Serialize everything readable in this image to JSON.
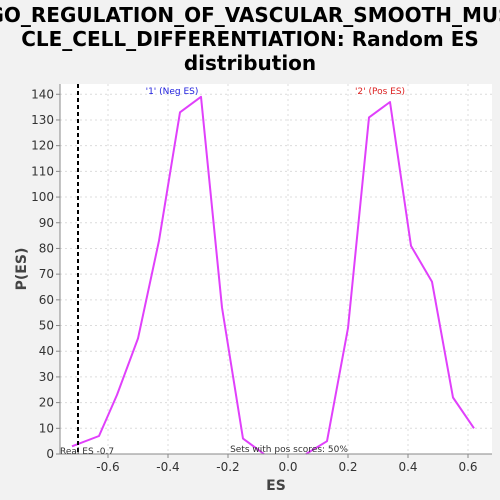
{
  "chart_data": {
    "type": "line",
    "title_lines": [
      "GO_REGULATION_OF_VASCULAR_SMOOTH_MUS",
      "CLE_CELL_DIFFERENTIATION: Random ES",
      "distribution"
    ],
    "xlabel": "ES",
    "ylabel": "P(ES)",
    "xlim": [
      -0.76,
      0.68
    ],
    "ylim": [
      0,
      144
    ],
    "xticks": [
      -0.6,
      -0.4,
      -0.2,
      0.0,
      0.2,
      0.4,
      0.6
    ],
    "xtick_labels": [
      "-0.6",
      "-0.4",
      "-0.2",
      "0.0",
      "0.2",
      "0.4",
      "0.6"
    ],
    "yticks": [
      0,
      10,
      20,
      30,
      40,
      50,
      60,
      70,
      80,
      90,
      100,
      110,
      120,
      130,
      140
    ],
    "ytick_labels": [
      "0",
      "10",
      "20",
      "30",
      "40",
      "50",
      "60",
      "70",
      "80",
      "90",
      "100",
      "110",
      "120",
      "130",
      "140"
    ],
    "grid": true,
    "series": [
      {
        "name": "'1' (Neg ES)",
        "color": "#e040fb",
        "x": [
          -0.72,
          -0.63,
          -0.57,
          -0.5,
          -0.43,
          -0.36,
          -0.29,
          -0.22,
          -0.15,
          -0.08
        ],
        "y": [
          3,
          7,
          23,
          45,
          83,
          133,
          139,
          57,
          6,
          0
        ]
      },
      {
        "name": "'2' (Pos ES)",
        "color": "#e040fb",
        "x": [
          0.06,
          0.13,
          0.2,
          0.27,
          0.34,
          0.41,
          0.48,
          0.55,
          0.62
        ],
        "y": [
          0,
          5,
          49,
          131,
          137,
          81,
          67,
          22,
          10
        ]
      }
    ],
    "legend": [
      {
        "label": "'1' (Neg ES)",
        "color": "#2222dd"
      },
      {
        "label": "'2' (Pos ES)",
        "color": "#dd2222"
      }
    ],
    "real_es": {
      "value": -0.7,
      "label": "Real ES -0.7"
    },
    "annotation": "Sets with pos scores: 50%"
  }
}
